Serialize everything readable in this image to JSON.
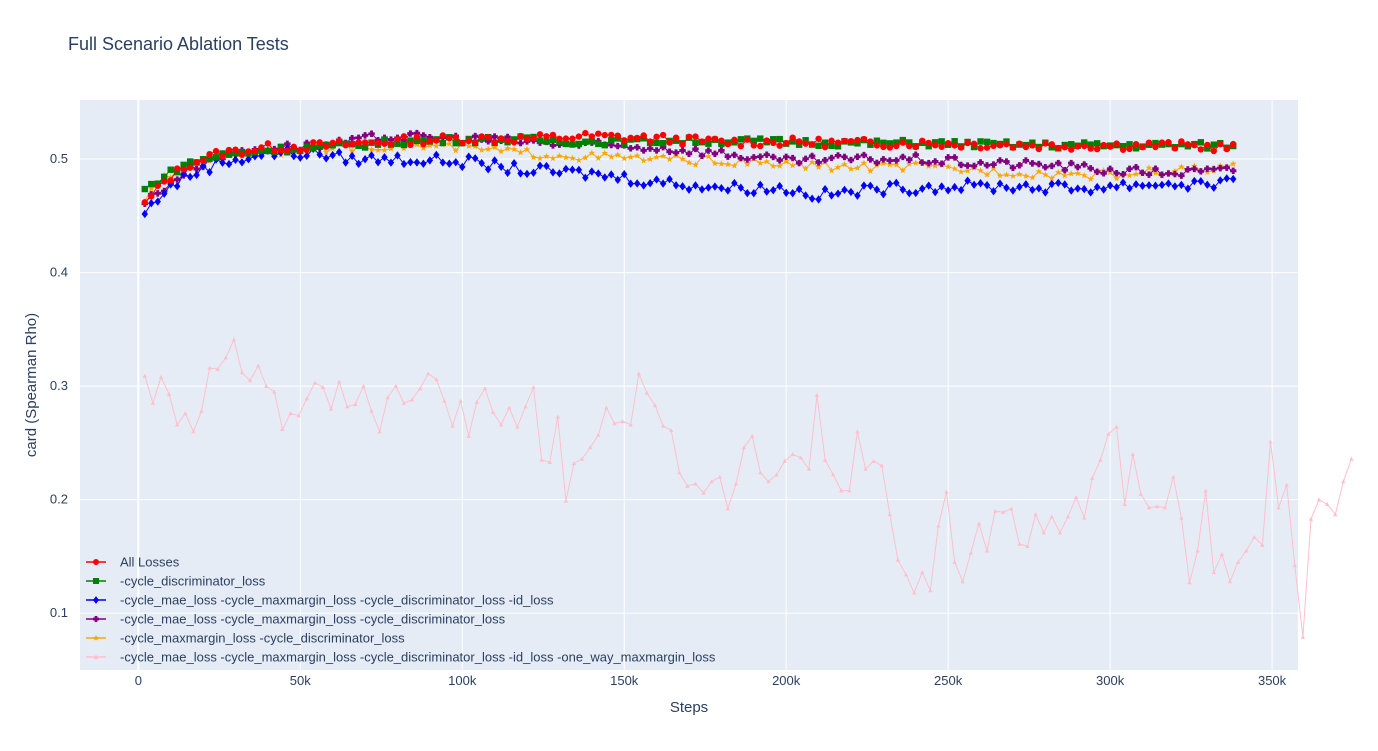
{
  "chart_data": {
    "type": "line",
    "title": "Full Scenario Ablation Tests",
    "xlabel": "Steps",
    "ylabel": "card (Spearman Rho)",
    "xlim": [
      -18000,
      358000
    ],
    "ylim": [
      0.05,
      0.552
    ],
    "x_ticks": [
      0,
      50000,
      100000,
      150000,
      200000,
      250000,
      300000,
      350000
    ],
    "x_tick_labels": [
      "0",
      "50k",
      "100k",
      "150k",
      "200k",
      "250k",
      "300k",
      "350k"
    ],
    "y_ticks": [
      0.1,
      0.2,
      0.3,
      0.4,
      0.5
    ],
    "y_tick_labels": [
      "0.1",
      "0.2",
      "0.3",
      "0.4",
      "0.5"
    ],
    "grid": true,
    "legend_position": "bottom-left",
    "plot_background": "#e5ecf6",
    "series": [
      {
        "name": "All Losses",
        "color": "#ff0000",
        "marker": "circle",
        "anchors": [
          [
            2000,
            0.46
          ],
          [
            8000,
            0.48
          ],
          [
            15000,
            0.495
          ],
          [
            25000,
            0.505
          ],
          [
            40000,
            0.51
          ],
          [
            60000,
            0.512
          ],
          [
            80000,
            0.516
          ],
          [
            100000,
            0.518
          ],
          [
            120000,
            0.518
          ],
          [
            140000,
            0.52
          ],
          [
            160000,
            0.518
          ],
          [
            180000,
            0.515
          ],
          [
            200000,
            0.515
          ],
          [
            220000,
            0.514
          ],
          [
            240000,
            0.514
          ],
          [
            260000,
            0.513
          ],
          [
            280000,
            0.512
          ],
          [
            300000,
            0.512
          ],
          [
            320000,
            0.512
          ],
          [
            339000,
            0.51
          ]
        ],
        "noise": 0.004
      },
      {
        "name": "-cycle_discriminator_loss",
        "color": "#008000",
        "marker": "square",
        "anchors": [
          [
            2000,
            0.473
          ],
          [
            8000,
            0.485
          ],
          [
            15000,
            0.496
          ],
          [
            25000,
            0.503
          ],
          [
            40000,
            0.508
          ],
          [
            60000,
            0.511
          ],
          [
            80000,
            0.515
          ],
          [
            100000,
            0.517
          ],
          [
            120000,
            0.517
          ],
          [
            140000,
            0.515
          ],
          [
            160000,
            0.516
          ],
          [
            180000,
            0.516
          ],
          [
            200000,
            0.515
          ],
          [
            220000,
            0.514
          ],
          [
            240000,
            0.514
          ],
          [
            260000,
            0.513
          ],
          [
            280000,
            0.512
          ],
          [
            300000,
            0.512
          ],
          [
            320000,
            0.512
          ],
          [
            339000,
            0.512
          ]
        ],
        "noise": 0.003
      },
      {
        "name": "-cycle_mae_loss  -cycle_maxmargin_loss  -cycle_discriminator_loss  -id_loss",
        "color": "#0000ff",
        "marker": "diamond",
        "anchors": [
          [
            2000,
            0.452
          ],
          [
            8000,
            0.472
          ],
          [
            15000,
            0.485
          ],
          [
            25000,
            0.497
          ],
          [
            40000,
            0.505
          ],
          [
            55000,
            0.505
          ],
          [
            65000,
            0.5
          ],
          [
            80000,
            0.5
          ],
          [
            100000,
            0.498
          ],
          [
            120000,
            0.49
          ],
          [
            140000,
            0.487
          ],
          [
            160000,
            0.48
          ],
          [
            180000,
            0.475
          ],
          [
            200000,
            0.474
          ],
          [
            210000,
            0.468
          ],
          [
            230000,
            0.474
          ],
          [
            250000,
            0.476
          ],
          [
            270000,
            0.476
          ],
          [
            290000,
            0.474
          ],
          [
            310000,
            0.478
          ],
          [
            320000,
            0.478
          ],
          [
            339000,
            0.478
          ]
        ],
        "noise": 0.005
      },
      {
        "name": "-cycle_mae_loss  -cycle_maxmargin_loss -cycle_discriminator_loss",
        "color": "#800080",
        "marker": "cross",
        "anchors": [
          [
            2000,
            0.462
          ],
          [
            8000,
            0.475
          ],
          [
            15000,
            0.49
          ],
          [
            25000,
            0.503
          ],
          [
            40000,
            0.51
          ],
          [
            60000,
            0.512
          ],
          [
            75000,
            0.52
          ],
          [
            100000,
            0.518
          ],
          [
            120000,
            0.515
          ],
          [
            140000,
            0.512
          ],
          [
            160000,
            0.51
          ],
          [
            180000,
            0.505
          ],
          [
            200000,
            0.498
          ],
          [
            220000,
            0.5
          ],
          [
            240000,
            0.5
          ],
          [
            260000,
            0.496
          ],
          [
            280000,
            0.495
          ],
          [
            300000,
            0.49
          ],
          [
            320000,
            0.488
          ],
          [
            339000,
            0.49
          ]
        ],
        "noise": 0.004
      },
      {
        "name": "-cycle_maxmargin_loss -cycle_discriminator_loss",
        "color": "#ffa500",
        "marker": "star",
        "anchors": [
          [
            2000,
            0.465
          ],
          [
            8000,
            0.482
          ],
          [
            15000,
            0.495
          ],
          [
            25000,
            0.503
          ],
          [
            40000,
            0.507
          ],
          [
            60000,
            0.51
          ],
          [
            80000,
            0.512
          ],
          [
            100000,
            0.51
          ],
          [
            120000,
            0.505
          ],
          [
            140000,
            0.502
          ],
          [
            160000,
            0.5
          ],
          [
            180000,
            0.498
          ],
          [
            200000,
            0.495
          ],
          [
            220000,
            0.493
          ],
          [
            240000,
            0.493
          ],
          [
            260000,
            0.49
          ],
          [
            280000,
            0.487
          ],
          [
            300000,
            0.486
          ],
          [
            320000,
            0.49
          ],
          [
            339000,
            0.492
          ]
        ],
        "noise": 0.004
      },
      {
        "name": "-cycle_mae_loss -cycle_maxmargin_loss -cycle_discriminator_loss -id_loss -one_way_maxmargin_loss",
        "color": "#ffc0cb",
        "marker": "triangle",
        "values": [
          [
            2000,
            0.309
          ],
          [
            4500,
            0.285
          ],
          [
            7000,
            0.308
          ],
          [
            9500,
            0.293
          ],
          [
            12000,
            0.266
          ],
          [
            14500,
            0.276
          ],
          [
            17000,
            0.26
          ],
          [
            19500,
            0.278
          ],
          [
            22000,
            0.316
          ],
          [
            24500,
            0.315
          ],
          [
            27000,
            0.325
          ],
          [
            29500,
            0.341
          ],
          [
            32000,
            0.312
          ],
          [
            34500,
            0.305
          ],
          [
            37000,
            0.318
          ],
          [
            39500,
            0.3
          ],
          [
            42000,
            0.295
          ],
          [
            44500,
            0.262
          ],
          [
            47000,
            0.276
          ],
          [
            49500,
            0.274
          ],
          [
            52000,
            0.289
          ],
          [
            54500,
            0.303
          ],
          [
            57000,
            0.299
          ],
          [
            59500,
            0.28
          ],
          [
            62000,
            0.304
          ],
          [
            64500,
            0.282
          ],
          [
            67000,
            0.284
          ],
          [
            69500,
            0.3
          ],
          [
            72000,
            0.278
          ],
          [
            74500,
            0.26
          ],
          [
            77000,
            0.29
          ],
          [
            79500,
            0.3
          ],
          [
            82000,
            0.285
          ],
          [
            84500,
            0.288
          ],
          [
            87000,
            0.298
          ],
          [
            89500,
            0.311
          ],
          [
            92000,
            0.306
          ],
          [
            94500,
            0.287
          ],
          [
            97000,
            0.265
          ],
          [
            99500,
            0.287
          ],
          [
            102000,
            0.256
          ],
          [
            104500,
            0.286
          ],
          [
            107000,
            0.298
          ],
          [
            109500,
            0.277
          ],
          [
            112000,
            0.266
          ],
          [
            114500,
            0.281
          ],
          [
            117000,
            0.264
          ],
          [
            119500,
            0.282
          ],
          [
            122000,
            0.299
          ],
          [
            124500,
            0.235
          ],
          [
            127000,
            0.233
          ],
          [
            129500,
            0.273
          ],
          [
            132000,
            0.199
          ],
          [
            134500,
            0.232
          ],
          [
            137000,
            0.236
          ],
          [
            139500,
            0.246
          ],
          [
            142000,
            0.257
          ],
          [
            144500,
            0.281
          ],
          [
            147000,
            0.267
          ],
          [
            149500,
            0.269
          ],
          [
            152000,
            0.266
          ],
          [
            154500,
            0.311
          ],
          [
            157000,
            0.294
          ],
          [
            159500,
            0.283
          ],
          [
            162000,
            0.265
          ],
          [
            164500,
            0.261
          ],
          [
            167000,
            0.224
          ],
          [
            169500,
            0.212
          ],
          [
            172000,
            0.214
          ],
          [
            174500,
            0.206
          ],
          [
            177000,
            0.216
          ],
          [
            179500,
            0.22
          ],
          [
            182000,
            0.192
          ],
          [
            184500,
            0.214
          ],
          [
            187000,
            0.246
          ],
          [
            189500,
            0.256
          ],
          [
            192000,
            0.224
          ],
          [
            194500,
            0.216
          ],
          [
            197000,
            0.222
          ],
          [
            199500,
            0.234
          ],
          [
            202000,
            0.24
          ],
          [
            204500,
            0.237
          ],
          [
            207000,
            0.227
          ],
          [
            209500,
            0.292
          ],
          [
            212000,
            0.235
          ],
          [
            214500,
            0.222
          ],
          [
            217000,
            0.208
          ],
          [
            219500,
            0.208
          ],
          [
            222000,
            0.26
          ],
          [
            224500,
            0.227
          ],
          [
            227000,
            0.234
          ],
          [
            229500,
            0.23
          ],
          [
            232000,
            0.187
          ],
          [
            234500,
            0.147
          ],
          [
            237000,
            0.134
          ],
          [
            239500,
            0.118
          ],
          [
            242000,
            0.136
          ],
          [
            244500,
            0.12
          ],
          [
            247000,
            0.177
          ],
          [
            249500,
            0.207
          ],
          [
            252000,
            0.145
          ],
          [
            254500,
            0.128
          ],
          [
            257000,
            0.153
          ],
          [
            259500,
            0.179
          ],
          [
            262000,
            0.155
          ],
          [
            264500,
            0.19
          ],
          [
            267000,
            0.189
          ],
          [
            269500,
            0.192
          ],
          [
            272000,
            0.161
          ],
          [
            274500,
            0.159
          ],
          [
            277000,
            0.187
          ],
          [
            279500,
            0.171
          ],
          [
            282000,
            0.185
          ],
          [
            284500,
            0.171
          ],
          [
            287000,
            0.185
          ],
          [
            289500,
            0.202
          ],
          [
            292000,
            0.184
          ],
          [
            294500,
            0.219
          ],
          [
            297000,
            0.235
          ],
          [
            299500,
            0.258
          ],
          [
            302000,
            0.264
          ],
          [
            304500,
            0.196
          ],
          [
            307000,
            0.24
          ],
          [
            309500,
            0.205
          ],
          [
            312000,
            0.193
          ],
          [
            314500,
            0.194
          ],
          [
            317000,
            0.193
          ],
          [
            319500,
            0.22
          ],
          [
            322000,
            0.184
          ],
          [
            324500,
            0.127
          ],
          [
            327000,
            0.155
          ],
          [
            329500,
            0.208
          ],
          [
            332000,
            0.136
          ],
          [
            334500,
            0.152
          ],
          [
            337000,
            0.128
          ],
          [
            339500,
            0.145
          ],
          [
            342000,
            0.155
          ],
          [
            344500,
            0.167
          ],
          [
            347000,
            0.16
          ],
          [
            349500,
            0.251
          ],
          [
            352000,
            0.193
          ],
          [
            354500,
            0.213
          ],
          [
            357000,
            0.142
          ],
          [
            359500,
            0.079
          ],
          [
            362000,
            0.183
          ],
          [
            364500,
            0.2
          ],
          [
            367000,
            0.196
          ],
          [
            369500,
            0.187
          ],
          [
            372000,
            0.216
          ],
          [
            374500,
            0.236
          ]
        ]
      }
    ]
  }
}
